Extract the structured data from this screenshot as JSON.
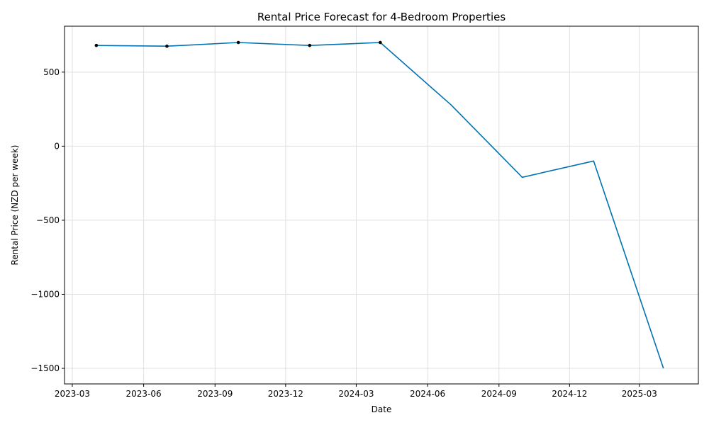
{
  "chart_data": {
    "type": "line",
    "title": "Rental Price Forecast for 4-Bedroom Properties",
    "xlabel": "Date",
    "ylabel": "Rental Price (NZD per week)",
    "x_type": "date",
    "xlim": [
      "2023-02-19",
      "2025-05-16"
    ],
    "ylim": [
      -1605,
      810
    ],
    "x_ticks": [
      "2023-03-01",
      "2023-06-01",
      "2023-09-01",
      "2023-12-01",
      "2024-03-01",
      "2024-06-01",
      "2024-09-01",
      "2024-12-01",
      "2025-03-01"
    ],
    "x_tick_labels": [
      "2023-03",
      "2023-06",
      "2023-09",
      "2023-12",
      "2024-03",
      "2024-06",
      "2024-09",
      "2024-12",
      "2025-03"
    ],
    "y_ticks": [
      500,
      0,
      -500,
      -1000,
      -1500
    ],
    "y_tick_labels": [
      "500",
      "0",
      "−500",
      "−1000",
      "−1500"
    ],
    "grid": true,
    "colors": {
      "line": "#0072b2",
      "markers": "#000000",
      "grid": "#e0e0e0"
    },
    "series": [
      {
        "x": [
          "2023-04-01",
          "2023-07-01",
          "2023-10-01",
          "2024-01-01",
          "2024-04-01",
          "2024-07-01",
          "2024-10-01",
          "2025-01-01",
          "2025-04-01"
        ],
        "y": [
          680,
          675,
          700,
          680,
          700,
          280,
          -210,
          -100,
          -1500
        ]
      }
    ],
    "markers": {
      "x": [
        "2023-04-01",
        "2023-07-01",
        "2023-10-01",
        "2024-01-01",
        "2024-04-01"
      ],
      "y": [
        680,
        675,
        700,
        680,
        700
      ]
    }
  }
}
